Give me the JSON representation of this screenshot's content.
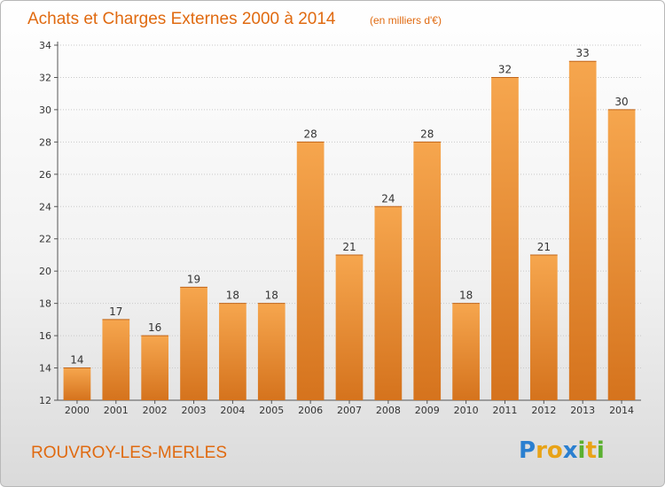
{
  "header": {
    "title": "Achats et Charges Externes 2000 à 2014",
    "subtitle": "(en milliers d'€)"
  },
  "footer": {
    "place": "ROUVROY-LES-MERLES",
    "logo_letters": [
      "P",
      "r",
      "o",
      "x",
      "i",
      "t",
      "i"
    ],
    "logo_colors": [
      "#2a7fd0",
      "#e8a317",
      "#e8a317",
      "#2a7fd0",
      "#5ab030",
      "#e8a317",
      "#5ab030"
    ]
  },
  "colors": {
    "accent": "#e06a10",
    "bar_top": "#f6a64e",
    "bar_bottom": "#d5731d"
  },
  "chart_data": {
    "type": "bar",
    "title": "Achats et Charges Externes 2000 à 2014",
    "subtitle": "(en milliers d'€)",
    "categories": [
      "2000",
      "2001",
      "2002",
      "2003",
      "2004",
      "2005",
      "2006",
      "2007",
      "2008",
      "2009",
      "2010",
      "2011",
      "2012",
      "2013",
      "2014"
    ],
    "values": [
      14,
      17,
      16,
      19,
      18,
      18,
      28,
      21,
      24,
      28,
      18,
      32,
      21,
      33,
      30
    ],
    "ylim": [
      12,
      34
    ],
    "yticks": [
      12,
      14,
      16,
      18,
      20,
      22,
      24,
      26,
      28,
      30,
      32,
      34
    ],
    "grid": true,
    "legend": "none"
  }
}
